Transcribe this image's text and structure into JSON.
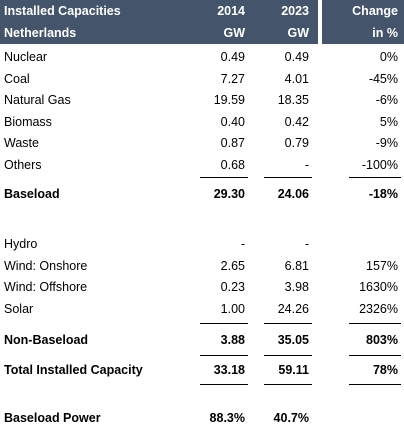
{
  "header": {
    "title": "Installed Capacities",
    "subtitle": "Netherlands",
    "columns": [
      "2014",
      "2023",
      "Change"
    ],
    "units": [
      "GW",
      "GW",
      "in %"
    ]
  },
  "sections": [
    {
      "rows": [
        [
          "Nuclear",
          "0.49",
          "0.49",
          "0%"
        ],
        [
          "Coal",
          "7.27",
          "4.01",
          "-45%"
        ],
        [
          "Natural Gas",
          "19.59",
          "18.35",
          "-6%"
        ],
        [
          "Biomass",
          "0.40",
          "0.42",
          "5%"
        ],
        [
          "Waste",
          "0.87",
          "0.79",
          "-9%"
        ],
        [
          "Others",
          "0.68",
          "-",
          "-100%"
        ]
      ],
      "total": [
        "Baseload",
        "29.30",
        "24.06",
        "-18%"
      ]
    },
    {
      "rows": [
        [
          "Hydro",
          "-",
          "-",
          null
        ],
        [
          "Wind: Onshore",
          "2.65",
          "6.81",
          "157%"
        ],
        [
          "Wind: Offshore",
          "0.23",
          "3.98",
          "1630%"
        ],
        [
          "Solar",
          "1.00",
          "24.26",
          "2326%"
        ]
      ],
      "total": [
        "Non-Baseload",
        "3.88",
        "35.05",
        "803%"
      ]
    }
  ],
  "total": [
    "Total Installed Capacity",
    "33.18",
    "59.11",
    "78%"
  ],
  "footer": [
    "Baseload Power",
    "88.3%",
    "40.7%",
    null
  ]
}
